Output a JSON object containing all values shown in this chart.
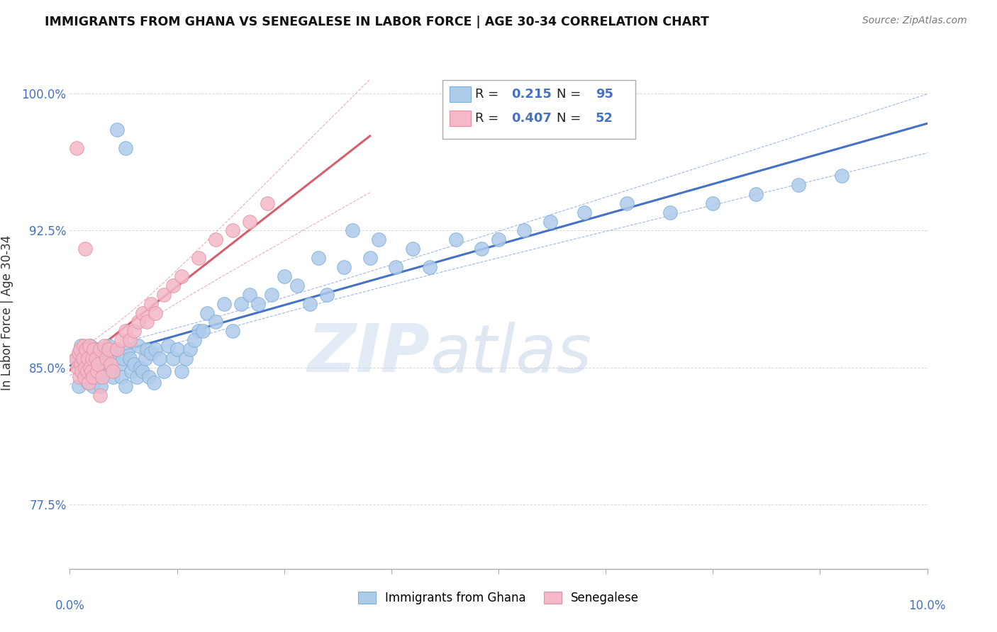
{
  "title": "IMMIGRANTS FROM GHANA VS SENEGALESE IN LABOR FORCE | AGE 30-34 CORRELATION CHART",
  "source": "Source: ZipAtlas.com",
  "ylabel": "In Labor Force | Age 30-34",
  "xmin": 0.0,
  "xmax": 10.0,
  "ymin": 74.0,
  "ymax": 102.0,
  "yticks": [
    77.5,
    85.0,
    92.5,
    100.0
  ],
  "watermark_zip": "ZIP",
  "watermark_atlas": "atlas",
  "ghana_color": "#aecbea",
  "ghana_edge": "#7aadd4",
  "senegal_color": "#f4b8c8",
  "senegal_edge": "#e090a0",
  "ghana_line_color": "#4472c4",
  "senegal_line_color": "#d45f6e",
  "background_color": "#ffffff",
  "grid_color": "#d0d0d0",
  "R_ghana": 0.215,
  "N_ghana": 95,
  "R_senegal": 0.407,
  "N_senegal": 52,
  "tick_color": "#4472c4",
  "legend_R_color": "#4472c4",
  "legend_text_color": "#333333",
  "ghana_pts_x": [
    0.08,
    0.1,
    0.12,
    0.13,
    0.15,
    0.16,
    0.17,
    0.18,
    0.19,
    0.2,
    0.21,
    0.22,
    0.23,
    0.24,
    0.25,
    0.26,
    0.27,
    0.28,
    0.3,
    0.31,
    0.32,
    0.33,
    0.35,
    0.36,
    0.38,
    0.4,
    0.42,
    0.45,
    0.48,
    0.5,
    0.52,
    0.55,
    0.58,
    0.6,
    0.62,
    0.65,
    0.68,
    0.7,
    0.72,
    0.75,
    0.78,
    0.8,
    0.82,
    0.85,
    0.88,
    0.9,
    0.92,
    0.95,
    0.98,
    1.0,
    1.05,
    1.1,
    1.15,
    1.2,
    1.25,
    1.3,
    1.35,
    1.4,
    1.5,
    1.6,
    1.7,
    1.8,
    1.9,
    2.0,
    2.1,
    2.2,
    2.35,
    2.5,
    2.65,
    2.8,
    3.0,
    3.2,
    3.5,
    3.8,
    4.0,
    4.2,
    4.5,
    4.8,
    5.0,
    5.3,
    5.6,
    6.0,
    6.5,
    7.0,
    7.5,
    8.0,
    8.5,
    9.0,
    3.3,
    3.6,
    2.9,
    1.45,
    1.55,
    0.55,
    0.65
  ],
  "ghana_pts_y": [
    85.5,
    84.0,
    85.8,
    86.2,
    85.0,
    84.5,
    85.5,
    84.8,
    85.2,
    86.0,
    84.2,
    85.0,
    84.8,
    86.2,
    84.5,
    85.5,
    84.0,
    85.8,
    85.5,
    84.8,
    86.0,
    84.5,
    85.2,
    84.0,
    86.0,
    85.5,
    84.8,
    86.2,
    85.0,
    84.5,
    85.8,
    86.0,
    85.2,
    84.5,
    85.5,
    84.0,
    86.0,
    85.5,
    84.8,
    85.2,
    84.5,
    86.2,
    85.0,
    84.8,
    85.5,
    86.0,
    84.5,
    85.8,
    84.2,
    86.0,
    85.5,
    84.8,
    86.2,
    85.5,
    86.0,
    84.8,
    85.5,
    86.0,
    87.0,
    88.0,
    87.5,
    88.5,
    87.0,
    88.5,
    89.0,
    88.5,
    89.0,
    90.0,
    89.5,
    88.5,
    89.0,
    90.5,
    91.0,
    90.5,
    91.5,
    90.5,
    92.0,
    91.5,
    92.0,
    92.5,
    93.0,
    93.5,
    94.0,
    93.5,
    94.0,
    94.5,
    95.0,
    95.5,
    92.5,
    92.0,
    91.0,
    86.5,
    87.0,
    98.0,
    97.0
  ],
  "senegal_pts_x": [
    0.07,
    0.09,
    0.1,
    0.11,
    0.12,
    0.13,
    0.14,
    0.15,
    0.16,
    0.17,
    0.18,
    0.19,
    0.2,
    0.21,
    0.22,
    0.23,
    0.24,
    0.25,
    0.26,
    0.27,
    0.28,
    0.3,
    0.32,
    0.33,
    0.35,
    0.38,
    0.4,
    0.43,
    0.45,
    0.48,
    0.5,
    0.55,
    0.6,
    0.65,
    0.7,
    0.75,
    0.8,
    0.85,
    0.9,
    0.95,
    1.0,
    1.1,
    1.2,
    1.3,
    1.5,
    1.7,
    1.9,
    2.1,
    2.3,
    0.08,
    0.18,
    0.35
  ],
  "senegal_pts_y": [
    85.5,
    85.0,
    85.8,
    84.5,
    86.0,
    85.2,
    84.8,
    85.5,
    86.2,
    84.5,
    85.0,
    86.0,
    84.8,
    85.5,
    84.2,
    86.2,
    85.0,
    84.8,
    85.5,
    84.5,
    86.0,
    85.5,
    84.8,
    85.2,
    86.0,
    84.5,
    86.2,
    85.5,
    86.0,
    85.2,
    84.8,
    86.0,
    86.5,
    87.0,
    86.5,
    87.0,
    87.5,
    88.0,
    87.5,
    88.5,
    88.0,
    89.0,
    89.5,
    90.0,
    91.0,
    92.0,
    92.5,
    93.0,
    94.0,
    97.0,
    91.5,
    83.5
  ]
}
